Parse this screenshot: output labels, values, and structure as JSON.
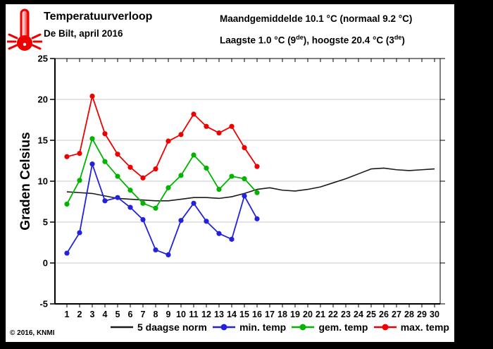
{
  "header": {
    "title": "Temperatuurverloop",
    "subtitle": "De Bilt, april 2016",
    "icon": "hot-thermometer-icon"
  },
  "stats": {
    "line1": "Maandgemiddelde 10.1 °C (normaal 9.2 °C)",
    "line2_pre": "Laagste 1.0 °C (9",
    "line2_sup1": "de",
    "line2_mid": "), hoogste 20.4 °C (3",
    "line2_sup2": "de",
    "line2_post": ")"
  },
  "footer": {
    "copyright": "© 2016, KNMI"
  },
  "chart_data": {
    "type": "line",
    "title": "Temperatuurverloop De Bilt, april 2016",
    "ylabel": "Graden Celsius",
    "ylim": [
      -5,
      25
    ],
    "yticks": [
      -5,
      0,
      5,
      10,
      15,
      20,
      25
    ],
    "days": [
      1,
      2,
      3,
      4,
      5,
      6,
      7,
      8,
      9,
      10,
      11,
      12,
      13,
      14,
      15,
      16,
      17,
      18,
      19,
      20,
      21,
      22,
      23,
      24,
      25,
      26,
      27,
      28,
      29,
      30
    ],
    "grid": "horizontal",
    "legend_position": "bottom",
    "series": [
      {
        "name": "5 daagse norm",
        "color": "#1a1a1a",
        "marker": false,
        "values": [
          8.7,
          8.6,
          8.5,
          8.2,
          7.9,
          7.8,
          7.7,
          7.6,
          7.6,
          7.8,
          8.0,
          8.0,
          7.9,
          8.1,
          8.5,
          9.0,
          9.2,
          8.9,
          8.8,
          9.0,
          9.3,
          9.8,
          10.3,
          10.9,
          11.5,
          11.6,
          11.4,
          11.3,
          11.4,
          11.5
        ]
      },
      {
        "name": "min. temp",
        "color": "#2222dd",
        "marker": true,
        "values": [
          1.2,
          3.7,
          12.1,
          7.6,
          8.0,
          6.8,
          5.3,
          1.6,
          1.0,
          5.2,
          7.3,
          5.1,
          3.6,
          2.9,
          8.2,
          5.4
        ]
      },
      {
        "name": "gem. temp",
        "color": "#00b400",
        "marker": true,
        "values": [
          7.2,
          10.1,
          15.2,
          12.4,
          10.6,
          8.9,
          7.3,
          6.7,
          9.2,
          10.7,
          13.2,
          11.6,
          9.0,
          10.6,
          10.3,
          8.6
        ]
      },
      {
        "name": "max. temp",
        "color": "#ee0000",
        "marker": true,
        "values": [
          13.0,
          13.4,
          20.4,
          15.8,
          13.3,
          11.7,
          10.4,
          11.5,
          14.9,
          15.7,
          18.2,
          16.7,
          15.9,
          16.7,
          14.1,
          11.8
        ]
      }
    ]
  }
}
